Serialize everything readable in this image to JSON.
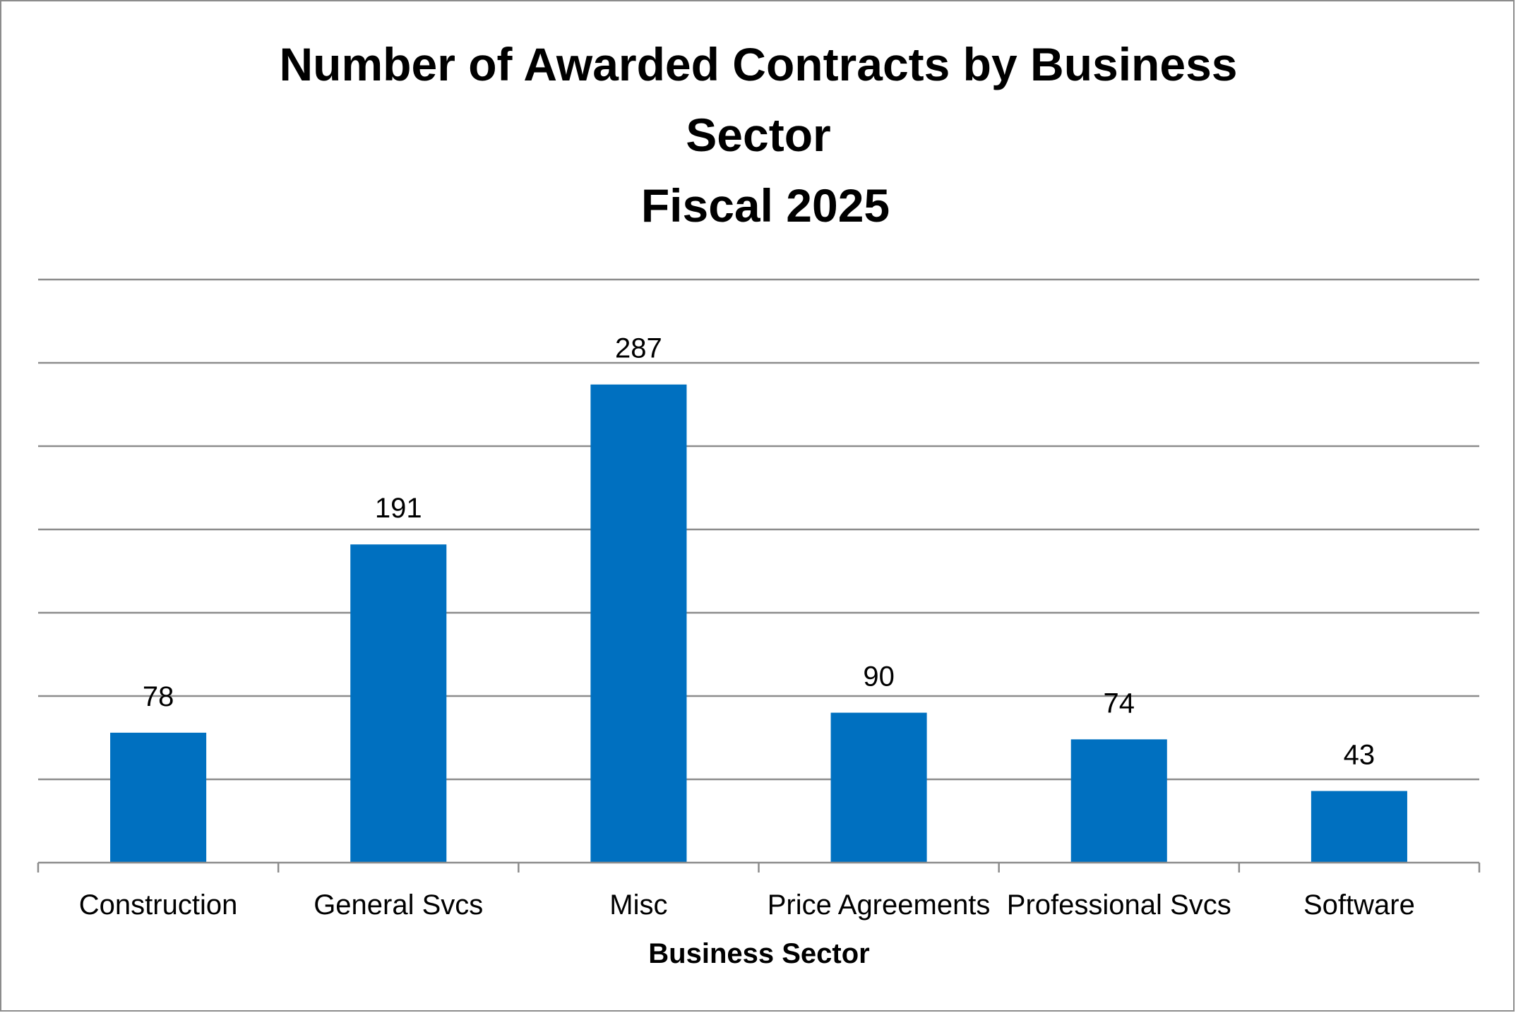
{
  "chart_data": {
    "type": "bar",
    "title_lines": [
      "Number of Awarded Contracts by Business",
      "Sector",
      "Fiscal 2025"
    ],
    "xlabel": "Business Sector",
    "ylabel": "",
    "categories": [
      "Construction",
      "General Svcs",
      "Misc",
      "Price Agreements",
      "Professional Svcs",
      "Software"
    ],
    "values": [
      78,
      191,
      287,
      90,
      74,
      43
    ],
    "ylim": [
      0,
      350
    ],
    "grid": true,
    "legend": "none",
    "y_tick_labels_shown": false,
    "data_labels_shown": true,
    "colors": {
      "bar": "#0070C0",
      "grid": "#8c8c8c",
      "axis": "#8c8c8c",
      "text": "#000000"
    }
  }
}
